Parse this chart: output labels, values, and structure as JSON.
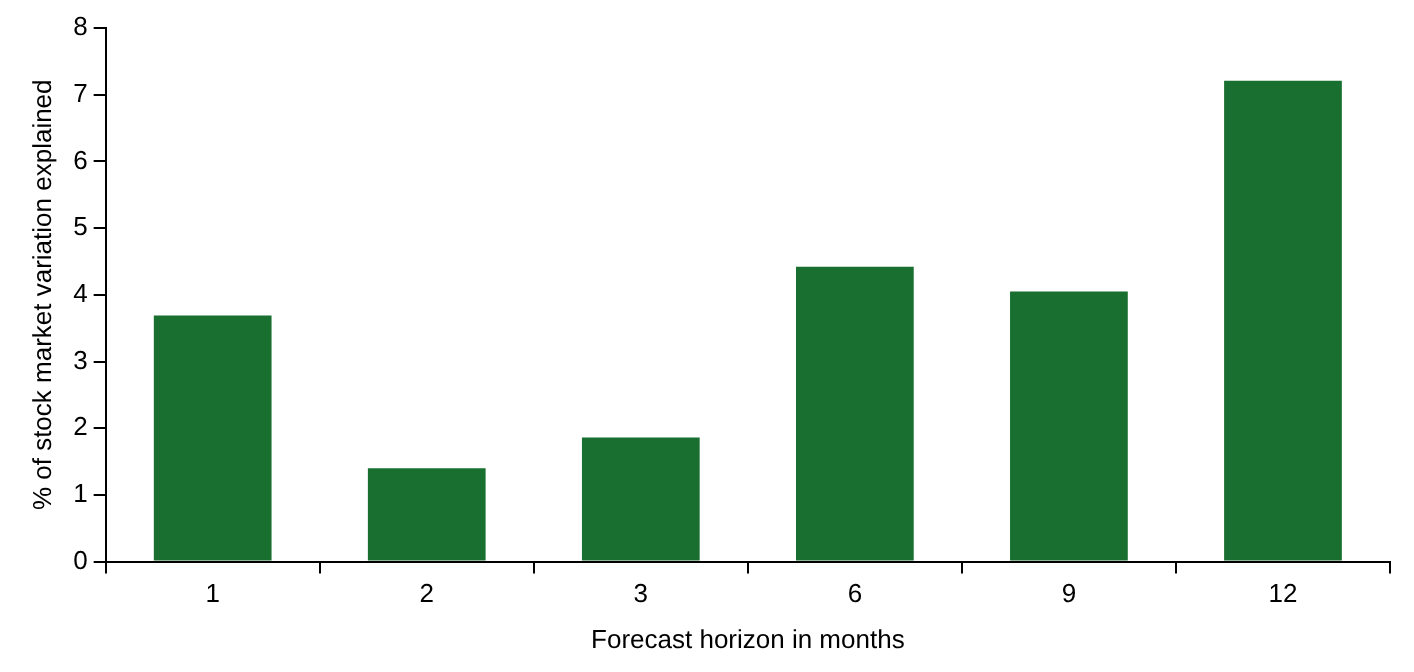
{
  "chart_data": {
    "type": "bar",
    "xlabel": "Forecast horizon in months",
    "ylabel": "% of stock market variation explained",
    "categories": [
      "1",
      "2",
      "3",
      "6",
      "9",
      "12"
    ],
    "values": [
      3.69,
      1.4,
      1.86,
      4.42,
      4.05,
      7.21
    ],
    "color": "#186f2f",
    "ylim": [
      0,
      8
    ],
    "yticks": [
      0,
      1,
      2,
      3,
      4,
      5,
      6,
      7,
      8
    ],
    "grid": false,
    "legend": false
  }
}
